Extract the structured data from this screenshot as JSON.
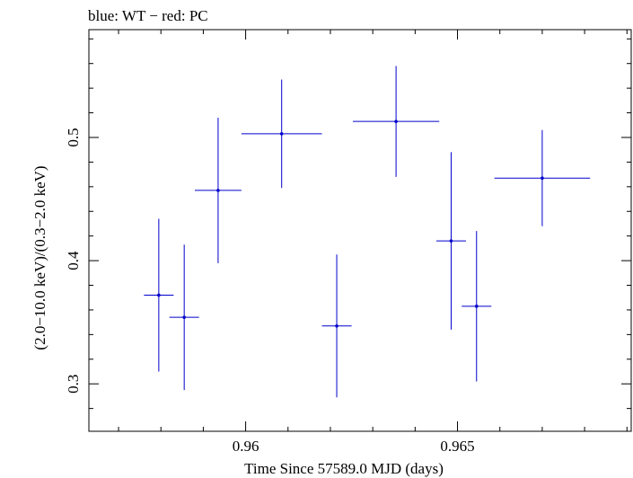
{
  "chart_data": {
    "type": "scatter",
    "title": "blue: WT − red: PC",
    "xlabel": "Time Since 57589.0 MJD (days)",
    "ylabel": "(2.0−10.0 keV)/(0.3−2.0 keV)",
    "xlim": [
      0.9563,
      0.9691
    ],
    "ylim": [
      0.2615,
      0.5875
    ],
    "x_ticks": [
      {
        "value": 0.96,
        "label": "0.96"
      },
      {
        "value": 0.965,
        "label": "0.965"
      }
    ],
    "y_ticks": [
      {
        "value": 0.3,
        "label": "0.3"
      },
      {
        "value": 0.4,
        "label": "0.4"
      },
      {
        "value": 0.5,
        "label": "0.5"
      }
    ],
    "x_minor_step": 0.001,
    "y_minor_step": 0.02,
    "grid": false,
    "series": [
      {
        "color": "#0000cc",
        "points": [
          {
            "x": 0.95795,
            "y": 0.372,
            "xerr": 0.00035,
            "yerr_lo": 0.062,
            "yerr_hi": 0.062
          },
          {
            "x": 0.95855,
            "y": 0.354,
            "xerr": 0.00035,
            "yerr_lo": 0.059,
            "yerr_hi": 0.059
          },
          {
            "x": 0.95935,
            "y": 0.457,
            "xerr": 0.00055,
            "yerr_lo": 0.059,
            "yerr_hi": 0.059
          },
          {
            "x": 0.96085,
            "y": 0.503,
            "xerr": 0.00095,
            "yerr_lo": 0.044,
            "yerr_hi": 0.044
          },
          {
            "x": 0.96215,
            "y": 0.347,
            "xerr": 0.00035,
            "yerr_lo": 0.058,
            "yerr_hi": 0.058
          },
          {
            "x": 0.96355,
            "y": 0.513,
            "xerr": 0.00102,
            "yerr_lo": 0.045,
            "yerr_hi": 0.045
          },
          {
            "x": 0.96485,
            "y": 0.416,
            "xerr": 0.00035,
            "yerr_lo": 0.072,
            "yerr_hi": 0.072
          },
          {
            "x": 0.96545,
            "y": 0.363,
            "xerr": 0.00035,
            "yerr_lo": 0.061,
            "yerr_hi": 0.061
          },
          {
            "x": 0.967,
            "y": 0.467,
            "xerr": 0.00113,
            "yerr_lo": 0.039,
            "yerr_hi": 0.039
          }
        ]
      }
    ]
  }
}
